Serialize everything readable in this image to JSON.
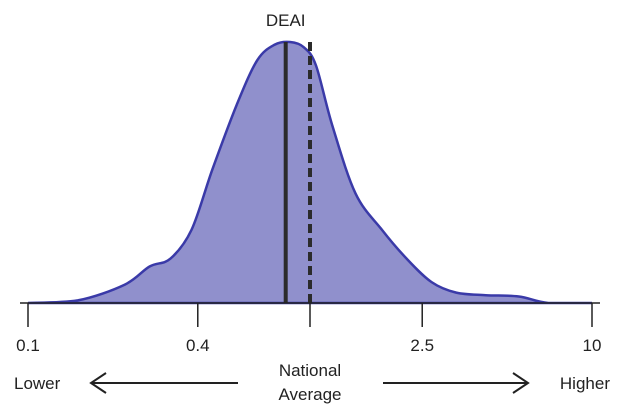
{
  "chart_data": {
    "type": "area",
    "title": "DEAI",
    "x_scale": "log",
    "xlim": [
      0.1,
      10
    ],
    "x_ticks": [
      {
        "value": 0.1,
        "label": "0.1"
      },
      {
        "value": 0.4,
        "label": "0.4"
      },
      {
        "value": 1,
        "label": ""
      },
      {
        "value": 2.5,
        "label": "2.5"
      },
      {
        "value": 10,
        "label": "10"
      }
    ],
    "density_curve": {
      "x": [
        0.1,
        0.15,
        0.22,
        0.27,
        0.32,
        0.38,
        0.45,
        0.55,
        0.65,
        0.75,
        0.85,
        0.95,
        1.05,
        1.2,
        1.45,
        1.8,
        2.2,
        2.7,
        3.3,
        4.2,
        5.5,
        7.0,
        10.0
      ],
      "y": [
        0.0,
        0.01,
        0.07,
        0.14,
        0.17,
        0.28,
        0.51,
        0.76,
        0.93,
        0.99,
        1.0,
        0.98,
        0.91,
        0.68,
        0.42,
        0.28,
        0.17,
        0.08,
        0.04,
        0.03,
        0.025,
        0.0,
        0.0
      ]
    },
    "ylim": [
      0,
      1
    ],
    "reference_lines": [
      {
        "name": "DEAI",
        "x": 0.82,
        "style": "solid"
      },
      {
        "name": "National Average",
        "x": 1.0,
        "style": "dashed"
      }
    ],
    "fill_color": "#9090cc",
    "stroke_color": "#3a3aa8",
    "line_color": "#2b2b2b",
    "grid": false,
    "annotations": {
      "lower": "Lower",
      "higher": "Higher",
      "center_line1": "National",
      "center_line2": "Average"
    }
  }
}
